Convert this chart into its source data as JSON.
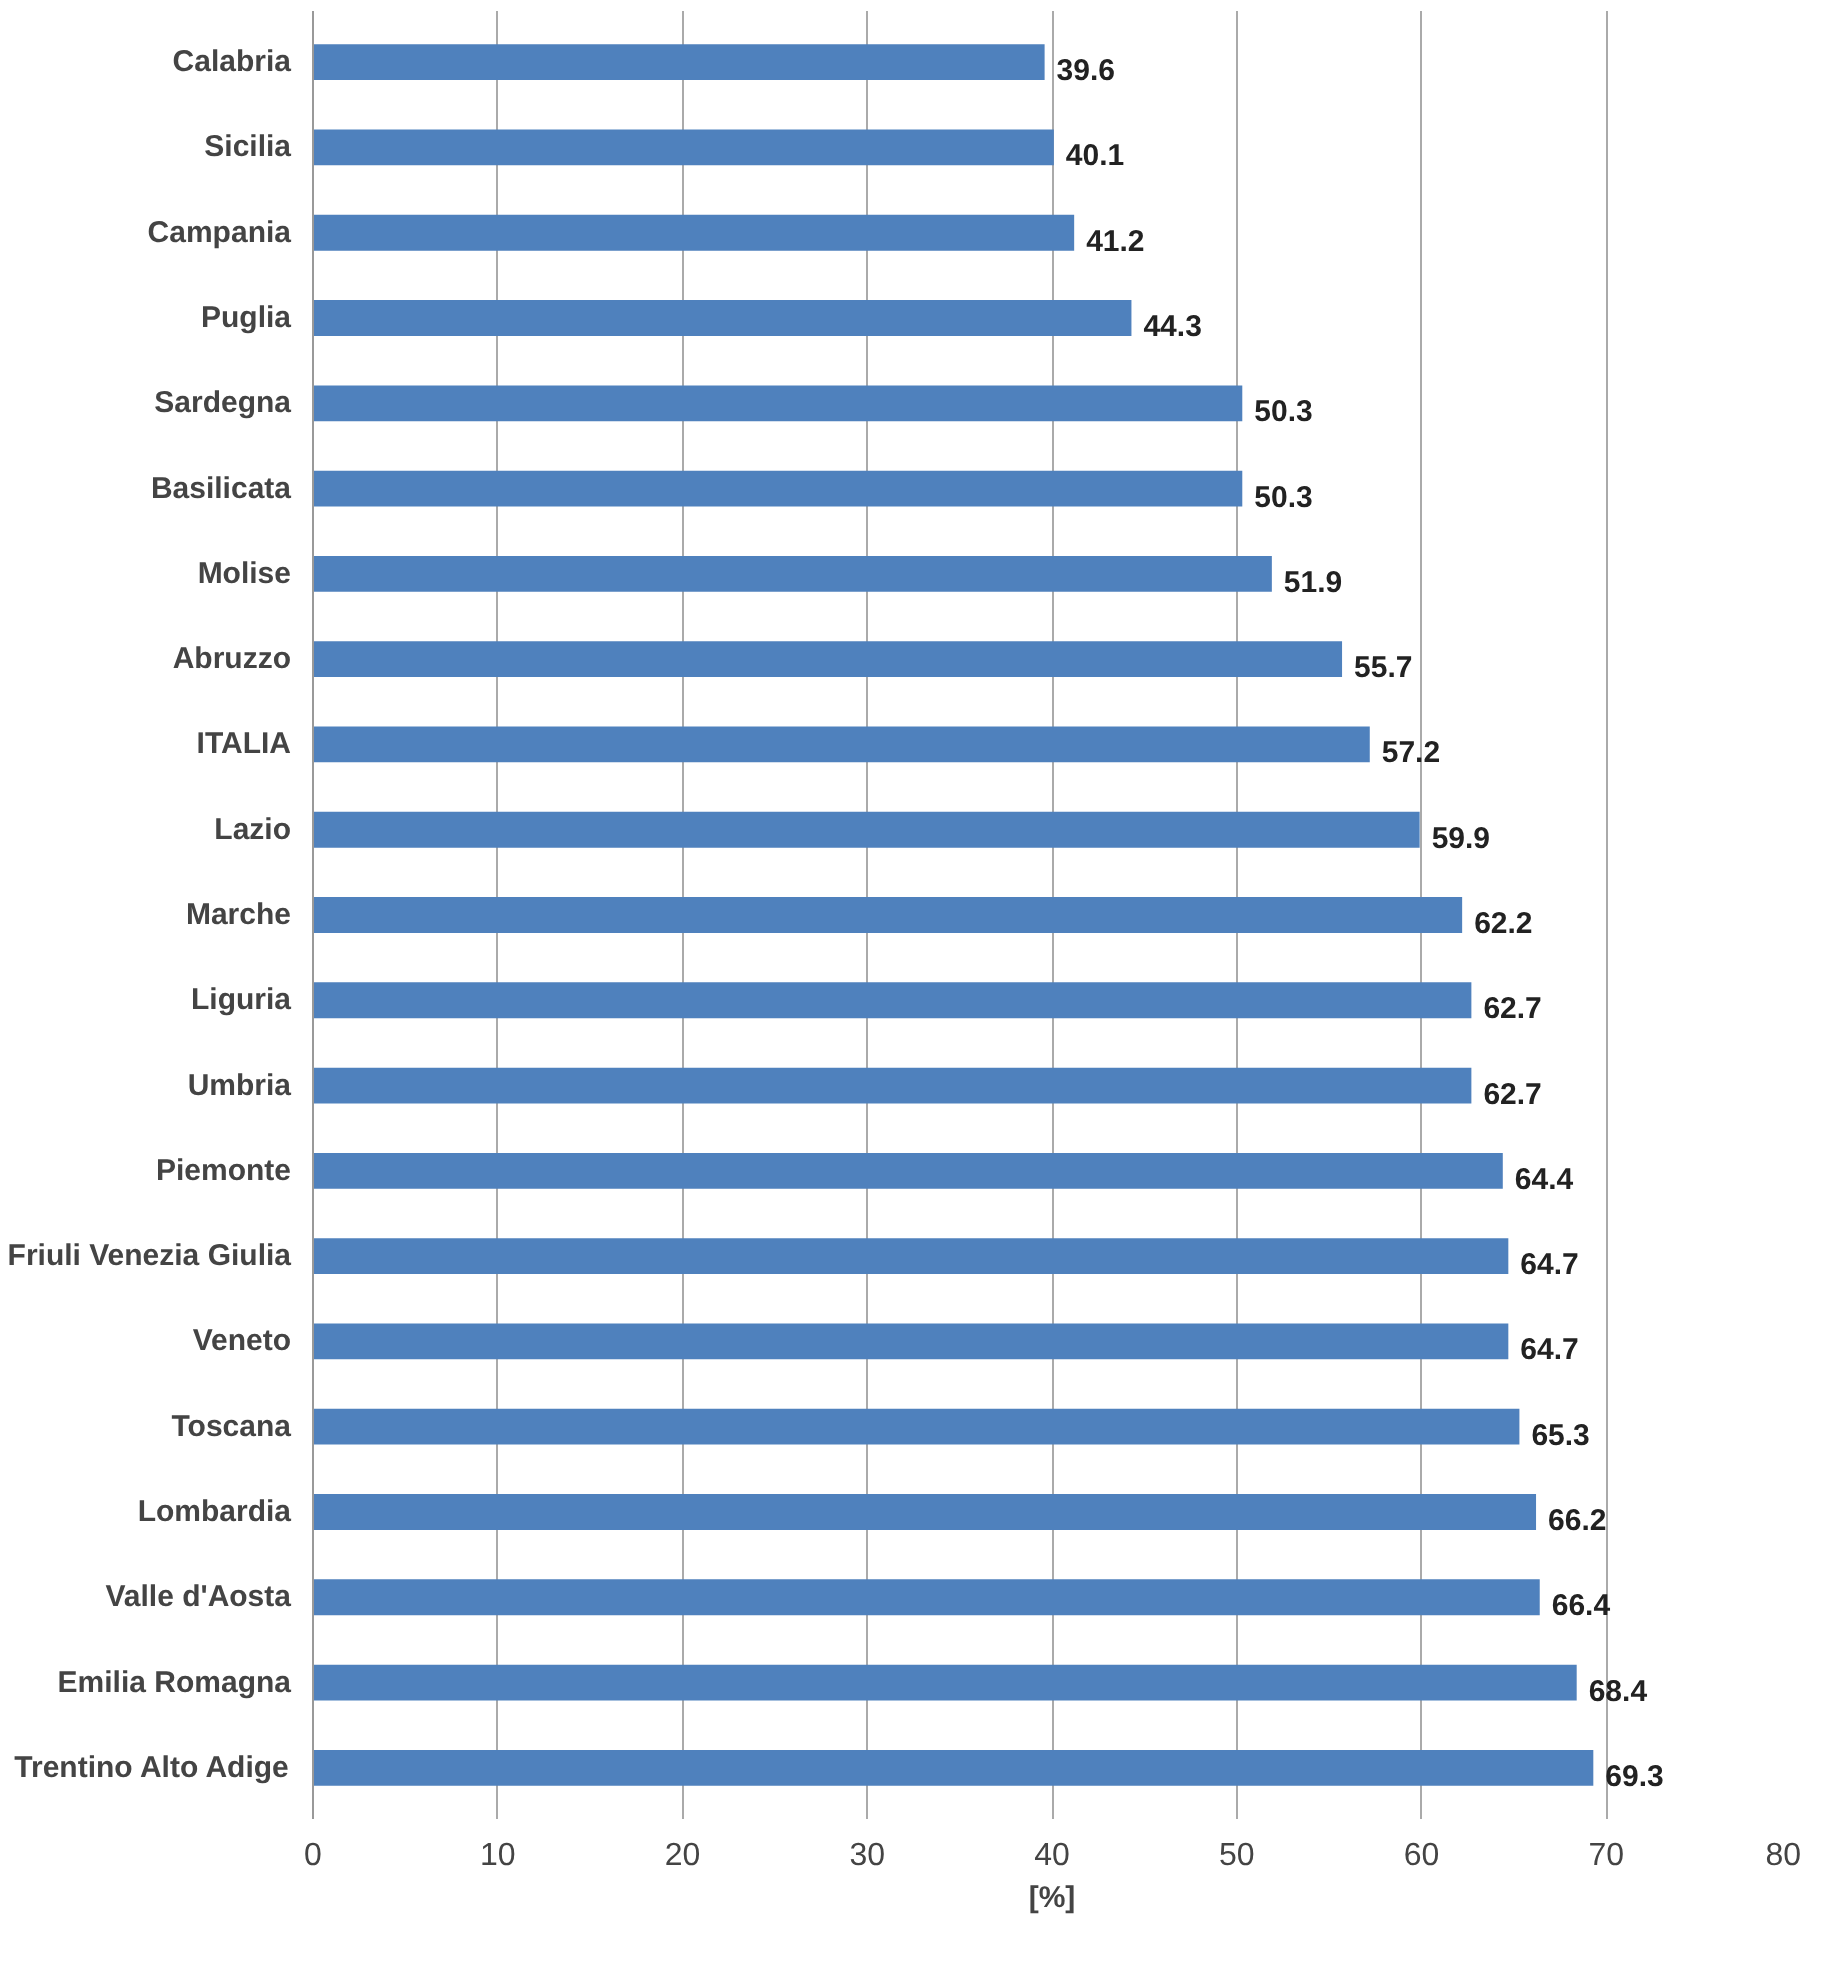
{
  "chart_data": {
    "type": "bar",
    "orientation": "horizontal",
    "xlabel": "[%]",
    "categories": [
      "Calabria",
      "Sicilia",
      "Campania",
      "Puglia",
      "Sardegna",
      "Basilicata",
      "Molise",
      "Abruzzo",
      "ITALIA",
      "Lazio",
      "Marche",
      "Liguria",
      "Umbria",
      "Piemonte",
      "Friuli Venezia Giulia",
      "Veneto",
      "Toscana",
      "Lombardia",
      "Valle d'Aosta",
      "Emilia Romagna",
      "Trentino Alto Adige"
    ],
    "values": [
      39.6,
      40.1,
      41.2,
      44.3,
      50.3,
      50.3,
      51.9,
      55.7,
      57.2,
      59.9,
      62.2,
      62.7,
      62.7,
      64.4,
      64.7,
      64.7,
      65.3,
      66.2,
      66.4,
      68.4,
      69.3
    ],
    "color": "#4f81bd",
    "xlim": [
      0,
      80
    ],
    "xticks": [
      0,
      10,
      20,
      30,
      40,
      50,
      60,
      70,
      80
    ],
    "grid": "x",
    "data_labels": true
  }
}
